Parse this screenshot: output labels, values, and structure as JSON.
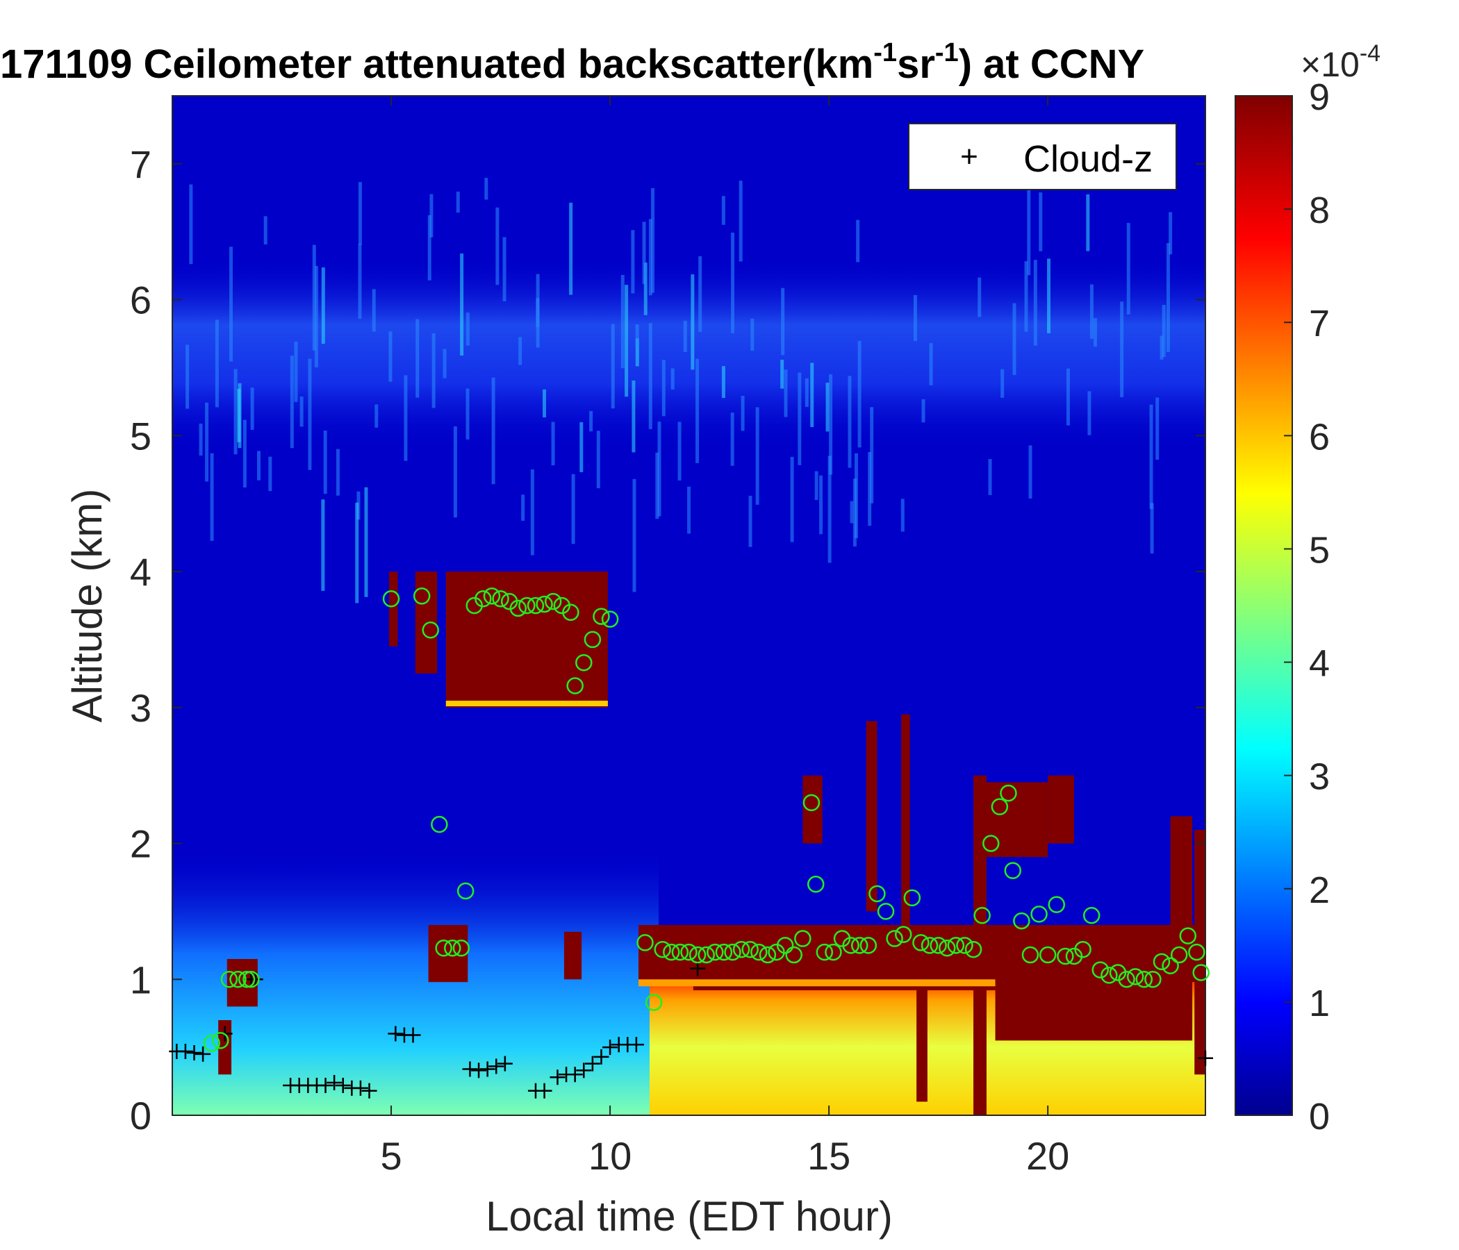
{
  "chart_data": {
    "type": "heatmap",
    "title_main": "171109 Ceilometer attenuated backscatter(km",
    "title_sup1": "-1",
    "title_mid": "sr",
    "title_sup2": "-1",
    "title_end": ") at CCNY",
    "xlabel": "Local time (EDT hour)",
    "ylabel": "Altitude (km)",
    "xlim": [
      0,
      23.6
    ],
    "ylim": [
      0,
      7.5
    ],
    "xticks": [
      "5",
      "10",
      "15",
      "20"
    ],
    "xtick_values": [
      5,
      10,
      15,
      20
    ],
    "yticks": [
      "0",
      "1",
      "2",
      "3",
      "4",
      "5",
      "6",
      "7"
    ],
    "ytick_values": [
      0,
      1,
      2,
      3,
      4,
      5,
      6,
      7
    ],
    "colorbar": {
      "min": 0,
      "max": 9,
      "ticks": [
        "0",
        "1",
        "2",
        "3",
        "4",
        "5",
        "6",
        "7",
        "8",
        "9"
      ],
      "tick_values": [
        0,
        1,
        2,
        3,
        4,
        5,
        6,
        7,
        8,
        9
      ],
      "exponent_base": "×10",
      "exponent": "-4",
      "colormap": "jet"
    },
    "legend": {
      "label": "Cloud-z",
      "marker": "+",
      "placement": "top-right"
    },
    "cloud_base_plus": [
      [
        0.1,
        0.47
      ],
      [
        0.3,
        0.47
      ],
      [
        0.5,
        0.46
      ],
      [
        0.7,
        0.45
      ],
      [
        1.2,
        0.6
      ],
      [
        1.8,
        1.0
      ],
      [
        1.9,
        1.0
      ],
      [
        2.7,
        0.22
      ],
      [
        2.9,
        0.22
      ],
      [
        3.1,
        0.22
      ],
      [
        3.3,
        0.22
      ],
      [
        3.5,
        0.22
      ],
      [
        3.7,
        0.24
      ],
      [
        3.9,
        0.22
      ],
      [
        4.1,
        0.2
      ],
      [
        4.3,
        0.2
      ],
      [
        4.5,
        0.18
      ],
      [
        5.1,
        0.6
      ],
      [
        5.3,
        0.59
      ],
      [
        5.5,
        0.59
      ],
      [
        6.8,
        0.34
      ],
      [
        7.0,
        0.33
      ],
      [
        7.2,
        0.34
      ],
      [
        7.4,
        0.36
      ],
      [
        7.6,
        0.38
      ],
      [
        8.3,
        0.18
      ],
      [
        8.5,
        0.18
      ],
      [
        8.8,
        0.28
      ],
      [
        9.0,
        0.3
      ],
      [
        9.2,
        0.3
      ],
      [
        9.4,
        0.33
      ],
      [
        9.6,
        0.38
      ],
      [
        9.8,
        0.43
      ],
      [
        10.0,
        0.5
      ],
      [
        10.2,
        0.52
      ],
      [
        10.4,
        0.52
      ],
      [
        10.6,
        0.52
      ],
      [
        12.0,
        1.08
      ],
      [
        23.6,
        0.42
      ]
    ],
    "detection_circles": [
      [
        0.9,
        0.53
      ],
      [
        1.1,
        0.55
      ],
      [
        1.3,
        1.0
      ],
      [
        1.5,
        1.0
      ],
      [
        1.7,
        1.0
      ],
      [
        1.8,
        1.0
      ],
      [
        5.0,
        3.8
      ],
      [
        5.7,
        3.82
      ],
      [
        5.9,
        3.57
      ],
      [
        6.1,
        2.14
      ],
      [
        6.2,
        1.23
      ],
      [
        6.4,
        1.23
      ],
      [
        6.6,
        1.23
      ],
      [
        6.7,
        1.65
      ],
      [
        6.9,
        3.75
      ],
      [
        7.1,
        3.8
      ],
      [
        7.3,
        3.82
      ],
      [
        7.5,
        3.8
      ],
      [
        7.7,
        3.78
      ],
      [
        7.9,
        3.73
      ],
      [
        8.1,
        3.75
      ],
      [
        8.3,
        3.75
      ],
      [
        8.5,
        3.76
      ],
      [
        8.7,
        3.78
      ],
      [
        8.9,
        3.75
      ],
      [
        9.1,
        3.7
      ],
      [
        9.2,
        3.16
      ],
      [
        9.4,
        3.33
      ],
      [
        9.6,
        3.5
      ],
      [
        9.8,
        3.67
      ],
      [
        10.0,
        3.65
      ],
      [
        10.8,
        1.27
      ],
      [
        11.0,
        0.83
      ],
      [
        11.2,
        1.22
      ],
      [
        11.4,
        1.2
      ],
      [
        11.6,
        1.2
      ],
      [
        11.8,
        1.2
      ],
      [
        12.0,
        1.18
      ],
      [
        12.2,
        1.18
      ],
      [
        12.4,
        1.2
      ],
      [
        12.6,
        1.2
      ],
      [
        12.8,
        1.2
      ],
      [
        13.0,
        1.22
      ],
      [
        13.2,
        1.22
      ],
      [
        13.4,
        1.2
      ],
      [
        13.6,
        1.18
      ],
      [
        13.8,
        1.2
      ],
      [
        14.0,
        1.25
      ],
      [
        14.2,
        1.18
      ],
      [
        14.4,
        1.3
      ],
      [
        14.6,
        2.3
      ],
      [
        14.7,
        1.7
      ],
      [
        14.9,
        1.2
      ],
      [
        15.1,
        1.2
      ],
      [
        15.3,
        1.3
      ],
      [
        15.5,
        1.25
      ],
      [
        15.7,
        1.25
      ],
      [
        15.9,
        1.25
      ],
      [
        16.1,
        1.63
      ],
      [
        16.3,
        1.5
      ],
      [
        16.5,
        1.3
      ],
      [
        16.7,
        1.33
      ],
      [
        16.9,
        1.6
      ],
      [
        17.1,
        1.27
      ],
      [
        17.3,
        1.25
      ],
      [
        17.5,
        1.25
      ],
      [
        17.7,
        1.23
      ],
      [
        17.9,
        1.25
      ],
      [
        18.1,
        1.25
      ],
      [
        18.3,
        1.22
      ],
      [
        18.5,
        1.47
      ],
      [
        18.7,
        2.0
      ],
      [
        18.9,
        2.27
      ],
      [
        19.1,
        2.37
      ],
      [
        19.2,
        1.8
      ],
      [
        19.4,
        1.43
      ],
      [
        19.6,
        1.18
      ],
      [
        19.8,
        1.48
      ],
      [
        20.0,
        1.18
      ],
      [
        20.2,
        1.55
      ],
      [
        20.4,
        1.17
      ],
      [
        20.6,
        1.17
      ],
      [
        20.8,
        1.22
      ],
      [
        21.0,
        1.47
      ],
      [
        21.2,
        1.07
      ],
      [
        21.4,
        1.03
      ],
      [
        21.6,
        1.05
      ],
      [
        21.8,
        1.0
      ],
      [
        22.0,
        1.02
      ],
      [
        22.2,
        1.0
      ],
      [
        22.4,
        1.0
      ],
      [
        22.6,
        1.13
      ],
      [
        22.8,
        1.1
      ],
      [
        23.0,
        1.18
      ],
      [
        23.2,
        1.32
      ],
      [
        23.4,
        1.2
      ],
      [
        23.5,
        1.05
      ]
    ]
  }
}
